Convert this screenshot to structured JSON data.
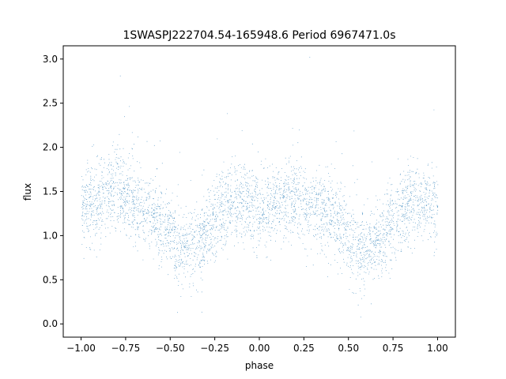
{
  "chart_data": {
    "type": "scatter",
    "title": "1SWASPJ222704.54-165948.6 Period 6967471.0s",
    "xlabel": "phase",
    "ylabel": "flux",
    "xlim": [
      -1.1,
      1.1
    ],
    "ylim": [
      -0.15,
      3.15
    ],
    "xticks": [
      -1.0,
      -0.75,
      -0.5,
      -0.25,
      0.0,
      0.25,
      0.5,
      0.75,
      1.0
    ],
    "xtick_labels": [
      "−1.00",
      "−0.75",
      "−0.50",
      "−0.25",
      "0.00",
      "0.25",
      "0.50",
      "0.75",
      "1.00"
    ],
    "yticks": [
      0.0,
      0.5,
      1.0,
      1.5,
      2.0,
      2.5,
      3.0
    ],
    "ytick_labels": [
      "0.0",
      "0.5",
      "1.0",
      "1.5",
      "2.0",
      "2.5",
      "3.0"
    ],
    "grid": false,
    "legend": "none",
    "point_color": "#1f77b4",
    "series": [
      {
        "x": [
          -1.0,
          -0.9,
          -0.8,
          -0.7,
          -0.6,
          -0.5,
          -0.45,
          -0.4,
          -0.3,
          -0.2,
          -0.1,
          0.0,
          0.1,
          0.2,
          0.3,
          0.4,
          0.5,
          0.55,
          0.6,
          0.7,
          0.8,
          0.9,
          1.0
        ],
        "y": [
          1.3,
          1.4,
          1.55,
          1.35,
          1.25,
          1.0,
          0.8,
          0.85,
          1.0,
          1.3,
          1.4,
          1.3,
          1.35,
          1.45,
          1.35,
          1.25,
          1.0,
          0.8,
          0.85,
          1.0,
          1.3,
          1.4,
          1.3
        ]
      }
    ]
  }
}
